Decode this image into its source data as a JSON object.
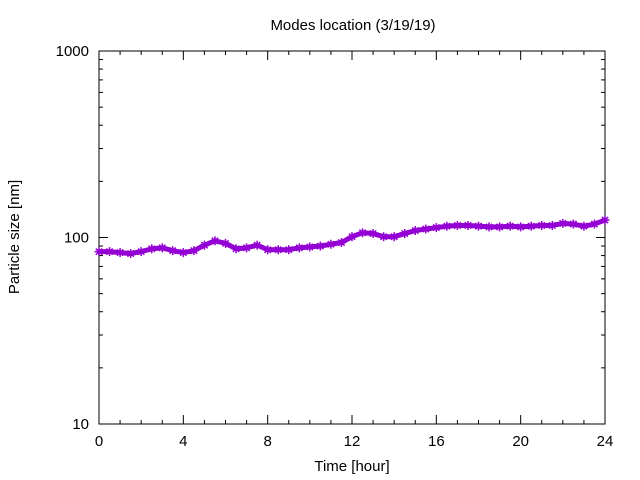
{
  "chart_data": {
    "type": "line",
    "title": "Modes location (3/19/19)",
    "xlabel": "Time [hour]",
    "ylabel": "Particle size [nm]",
    "xlim": [
      0,
      24
    ],
    "ylim": [
      10,
      1000
    ],
    "yscale": "log",
    "xticks": [
      0,
      4,
      8,
      12,
      16,
      20,
      24
    ],
    "xtick_labels": [
      "0",
      "4",
      "8",
      "12",
      "16",
      "20",
      "24"
    ],
    "yticks": [
      10,
      100,
      1000
    ],
    "ytick_labels": [
      "10",
      "100",
      "1000"
    ],
    "grid": false,
    "legend": "none",
    "series": [
      {
        "color": "#9400d3",
        "marker": "star",
        "x": [
          0,
          0.5,
          1,
          1.5,
          2,
          2.5,
          3,
          3.5,
          4,
          4.5,
          5,
          5.5,
          6,
          6.5,
          7,
          7.5,
          8,
          8.5,
          9,
          9.5,
          10,
          10.5,
          11,
          11.5,
          12,
          12.5,
          13,
          13.5,
          14,
          14.5,
          15,
          15.5,
          16,
          16.5,
          17,
          17.5,
          18,
          18.5,
          19,
          19.5,
          20,
          20.5,
          21,
          21.5,
          22,
          22.5,
          23,
          23.5,
          24
        ],
        "y": [
          84,
          84,
          83,
          82,
          84,
          87,
          88,
          85,
          83,
          85,
          91,
          96,
          93,
          87,
          88,
          91,
          86,
          86,
          86,
          88,
          89,
          90,
          92,
          94,
          101,
          106,
          105,
          101,
          101,
          105,
          109,
          111,
          113,
          115,
          116,
          116,
          115,
          114,
          114,
          115,
          114,
          115,
          116,
          116,
          119,
          118,
          115,
          118,
          124
        ]
      }
    ]
  }
}
